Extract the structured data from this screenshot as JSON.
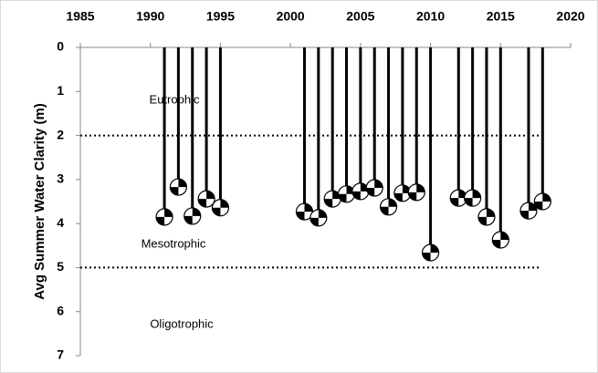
{
  "chart_data": {
    "type": "secchi",
    "y_label": "Avg Summer Water Clarity (m)",
    "x": [
      1991,
      1992,
      1993,
      1994,
      1995,
      2001,
      2002,
      2003,
      2004,
      2005,
      2006,
      2007,
      2008,
      2009,
      2010,
      2012,
      2013,
      2014,
      2015,
      2017,
      2018
    ],
    "values": [
      3.85,
      3.17,
      3.83,
      3.44,
      3.64,
      3.73,
      3.87,
      3.44,
      3.33,
      3.27,
      3.19,
      3.62,
      3.31,
      3.29,
      4.66,
      3.42,
      3.42,
      3.85,
      4.37,
      3.71,
      3.5
    ],
    "xlim": [
      1985,
      2020
    ],
    "xticks": [
      1985,
      1990,
      1995,
      2000,
      2005,
      2010,
      2015,
      2020
    ],
    "ylim": [
      0,
      7
    ],
    "yticks": [
      0,
      1,
      2,
      3,
      4,
      5,
      6,
      7
    ],
    "y_inverted": true,
    "reference_lines": [
      2,
      5
    ],
    "annotations": [
      "Eutrophic",
      "Mesotrophic",
      "Oligotrophic"
    ]
  }
}
